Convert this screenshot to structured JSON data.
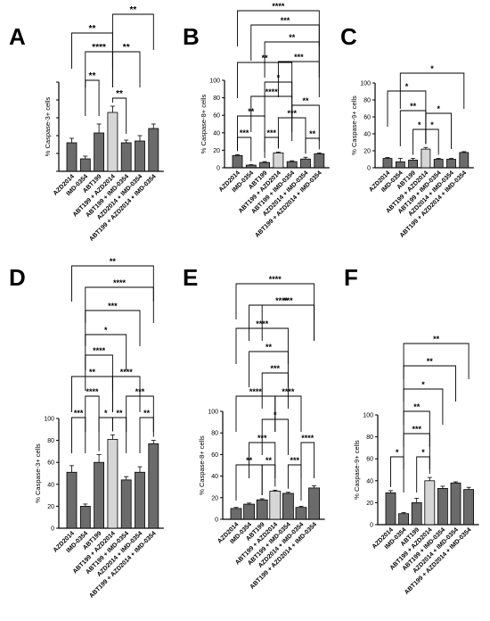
{
  "colors": {
    "dark_bar": "#6b6b6b",
    "light_bar": "#d6d6d6",
    "axis": "#000000"
  },
  "chart_data": [
    {
      "panel": "A",
      "type": "bar",
      "ylabel": "% Caspase-3+ cells",
      "categories": [
        "AZD2014",
        "IMD-0354",
        "ABT199",
        "ABT199 + AZD2014",
        "ABT199 + IMD-0354",
        "AZD2014 + IMD-0354",
        "ABT199 + AZD2014 + IMD-0354"
      ],
      "values": [
        32,
        14,
        43,
        66,
        32,
        34,
        48
      ],
      "errors": [
        5,
        3,
        10,
        7,
        3,
        6,
        5
      ],
      "ylim": [
        0,
        100
      ],
      "yticks": [],
      "significance": [
        {
          "from": 3,
          "to": 6,
          "label": "**"
        },
        {
          "from": 0,
          "to": 3,
          "label": "**"
        },
        {
          "from": 1,
          "to": 3,
          "label": "****"
        },
        {
          "from": 3,
          "to": 5,
          "label": "**"
        },
        {
          "from": 1,
          "to": 2,
          "label": "**"
        },
        {
          "from": 3,
          "to": 4,
          "label": "**"
        }
      ]
    },
    {
      "panel": "B",
      "type": "bar",
      "ylabel": "% Caspase-8+ cells",
      "categories": [
        "AZD2014",
        "IMD-0354",
        "ABT199",
        "ABT199 + AZD2014",
        "ABT199 + IMD-0354",
        "AZD2014 + IMD-0354",
        "ABT199 + AZD2014 + IMD-0354"
      ],
      "values": [
        14,
        3,
        6,
        17,
        7,
        10,
        16
      ],
      "errors": [
        1,
        0.5,
        1,
        1,
        1,
        2,
        1
      ],
      "ylim": [
        0,
        100
      ],
      "yticks": [
        "0",
        "20",
        "40",
        "60",
        "80",
        "100"
      ],
      "significance": [
        {
          "from": 0,
          "to": 6,
          "label": "****"
        },
        {
          "from": 1,
          "to": 6,
          "label": "***"
        },
        {
          "from": 2,
          "to": 6,
          "label": "**"
        },
        {
          "from": 0,
          "to": 4,
          "label": "**"
        },
        {
          "from": 3,
          "to": 6,
          "label": "***"
        },
        {
          "from": 2,
          "to": 4,
          "label": "*"
        },
        {
          "from": 1,
          "to": 4,
          "label": "****"
        },
        {
          "from": 4,
          "to": 6,
          "label": "**"
        },
        {
          "from": 0,
          "to": 2,
          "label": "**"
        },
        {
          "from": 3,
          "to": 5,
          "label": "***"
        },
        {
          "from": 0,
          "to": 1,
          "label": "***"
        },
        {
          "from": 2,
          "to": 3,
          "label": "***"
        },
        {
          "from": 5,
          "to": 6,
          "label": "**"
        }
      ]
    },
    {
      "panel": "C",
      "type": "bar",
      "ylabel": "% Caspase-9+ cells",
      "categories": [
        "AZD2014",
        "IMD-0354",
        "ABT199",
        "ABT199 + AZD2014",
        "ABT199 + IMD-0354",
        "AZD2014 + IMD-0354",
        "ABT199 + AZD2014 + IMD-0354"
      ],
      "values": [
        11,
        7,
        9,
        22,
        10,
        10,
        18
      ],
      "errors": [
        1,
        4,
        2,
        2,
        1,
        1,
        1
      ],
      "ylim": [
        0,
        100
      ],
      "yticks": [
        "0",
        "20",
        "40",
        "60",
        "80",
        "100"
      ],
      "significance": [
        {
          "from": 1,
          "to": 6,
          "label": "*"
        },
        {
          "from": 0,
          "to": 3,
          "label": "*"
        },
        {
          "from": 1,
          "to": 3,
          "label": "**"
        },
        {
          "from": 3,
          "to": 5,
          "label": "*"
        },
        {
          "from": 2,
          "to": 3,
          "label": "*"
        },
        {
          "from": 3,
          "to": 4,
          "label": "*"
        }
      ]
    },
    {
      "panel": "D",
      "type": "bar",
      "ylabel": "% Caspase-3+ cells",
      "categories": [
        "AZD2014",
        "IMD-0354",
        "ABT199",
        "ABT199 + AZD2014",
        "ABT199 + IMD-0354",
        "AZD2014 + IMD-0354",
        "ABT199 + AZD2014 + IMD-0354"
      ],
      "values": [
        51,
        20,
        60,
        81,
        44,
        51,
        77
      ],
      "errors": [
        6,
        2,
        7,
        4,
        3,
        5,
        3
      ],
      "ylim": [
        0,
        100
      ],
      "yticks": [
        "0",
        "20",
        "40",
        "60",
        "80",
        "100"
      ],
      "significance": [
        {
          "from": 0,
          "to": 6,
          "label": "**"
        },
        {
          "from": 1,
          "to": 6,
          "label": "****"
        },
        {
          "from": 1,
          "to": 5,
          "label": "***"
        },
        {
          "from": 1,
          "to": 4,
          "label": "*"
        },
        {
          "from": 1,
          "to": 3,
          "label": "****"
        },
        {
          "from": 0,
          "to": 3,
          "label": "**"
        },
        {
          "from": 3,
          "to": 5,
          "label": "****"
        },
        {
          "from": 1,
          "to": 2,
          "label": "****"
        },
        {
          "from": 4,
          "to": 6,
          "label": "***"
        },
        {
          "from": 0,
          "to": 1,
          "label": "***"
        },
        {
          "from": 2,
          "to": 3,
          "label": "*"
        },
        {
          "from": 3,
          "to": 4,
          "label": "**"
        },
        {
          "from": 5,
          "to": 6,
          "label": "**"
        }
      ]
    },
    {
      "panel": "E",
      "type": "bar",
      "ylabel": "% Caspase-8+ cells",
      "categories": [
        "AZD2014",
        "IMD-0354",
        "ABT199",
        "ABT199 + AZD2014",
        "ABT199 + IMD-0354",
        "AZD2014 + IMD-0354",
        "ABT199 + AZD2014 + IMD-0354"
      ],
      "values": [
        10,
        14,
        18,
        26,
        24,
        11,
        29
      ],
      "errors": [
        1,
        1,
        1,
        1,
        1,
        1,
        2
      ],
      "ylim": [
        0,
        100
      ],
      "yticks": [
        "0",
        "20",
        "40",
        "60",
        "80",
        "100"
      ],
      "significance": [
        {
          "from": 0,
          "to": 6,
          "label": "****"
        },
        {
          "from": 1,
          "to": 6,
          "label": "****"
        },
        {
          "from": 2,
          "to": 6,
          "label": "***"
        },
        {
          "from": 0,
          "to": 4,
          "label": "****"
        },
        {
          "from": 1,
          "to": 4,
          "label": "**"
        },
        {
          "from": 2,
          "to": 4,
          "label": "***"
        },
        {
          "from": 0,
          "to": 3,
          "label": "****"
        },
        {
          "from": 3,
          "to": 5,
          "label": "****"
        },
        {
          "from": 2,
          "to": 4,
          "label": "*"
        },
        {
          "from": 1,
          "to": 3,
          "label": "***"
        },
        {
          "from": 5,
          "to": 6,
          "label": "****"
        },
        {
          "from": 0,
          "to": 2,
          "label": "**"
        },
        {
          "from": 2,
          "to": 3,
          "label": "**"
        },
        {
          "from": 4,
          "to": 5,
          "label": "***"
        }
      ]
    },
    {
      "panel": "F",
      "type": "bar",
      "ylabel": "% Caspase-9+ cells",
      "categories": [
        "AZD2014",
        "IMD-0354",
        "ABT199",
        "ABT199 + AZD2014",
        "ABT199 + IMD-0354",
        "AZD2014 + IMD-0354",
        "ABT199 + AZD2014 + IMD-0354"
      ],
      "values": [
        29,
        10,
        20,
        40,
        33,
        38,
        32
      ],
      "errors": [
        2,
        1,
        4,
        3,
        2,
        1,
        2
      ],
      "ylim": [
        0,
        100
      ],
      "yticks": [
        "0",
        "20",
        "40",
        "60",
        "80",
        "100"
      ],
      "significance": [
        {
          "from": 1,
          "to": 6,
          "label": "**"
        },
        {
          "from": 1,
          "to": 5,
          "label": "**"
        },
        {
          "from": 1,
          "to": 4,
          "label": "*"
        },
        {
          "from": 1,
          "to": 3,
          "label": "**"
        },
        {
          "from": 1,
          "to": 3,
          "label": "***"
        },
        {
          "from": 0,
          "to": 1,
          "label": "*"
        },
        {
          "from": 2,
          "to": 3,
          "label": "*"
        }
      ]
    }
  ]
}
